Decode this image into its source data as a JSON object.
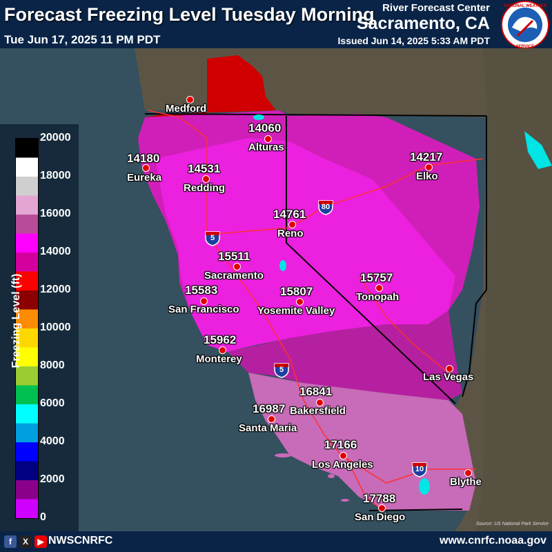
{
  "header": {
    "title": "Forecast Freezing Level Tuesday Morning",
    "valid_time": "Tue Jun 17, 2025 11 PM PDT",
    "agency": "River Forecast Center",
    "office": "Sacramento, CA",
    "issued": "Issued Jun 14, 2025 5:33 AM PDT",
    "logo_text": "NATIONAL WEATHER SERVICE"
  },
  "legend": {
    "title": "Freezing Level (ft)",
    "ticks": [
      "20000",
      "18000",
      "16000",
      "14000",
      "12000",
      "10000",
      "8000",
      "6000",
      "4000",
      "2000",
      "0"
    ],
    "colors": [
      "#000000",
      "#ffffff",
      "#cfcfcf",
      "#e3a5d2",
      "#b94c9a",
      "#ff00ff",
      "#d4009d",
      "#ff0000",
      "#8b0000",
      "#ff8c00",
      "#ffd700",
      "#ffff00",
      "#9acd32",
      "#00c050",
      "#00ffff",
      "#00a0e0",
      "#0000ff",
      "#000080",
      "#8b008b",
      "#d000ff"
    ]
  },
  "points": [
    {
      "value": "14060",
      "city": "Alturas"
    },
    {
      "value": "14180",
      "city": "Eureka"
    },
    {
      "value": "14531",
      "city": "Redding"
    },
    {
      "value": "14217",
      "city": "Elko"
    },
    {
      "value": "14761",
      "city": "Reno"
    },
    {
      "value": "15511",
      "city": "Sacramento"
    },
    {
      "value": "15583",
      "city": "San Francisco"
    },
    {
      "value": "15807",
      "city": "Yosemite Valley"
    },
    {
      "value": "15757",
      "city": "Tonopah"
    },
    {
      "value": "15962",
      "city": "Monterey"
    },
    {
      "value": "16841",
      "city": "Bakersfield"
    },
    {
      "value": "16987",
      "city": "Santa Maria"
    },
    {
      "value": "17166",
      "city": "Los Angeles"
    },
    {
      "value": "17788",
      "city": "San Diego"
    },
    {
      "value": "",
      "city": "Medford"
    },
    {
      "value": "",
      "city": "Las Vegas"
    },
    {
      "value": "",
      "city": "Blythe"
    }
  ],
  "highways": [
    "80",
    "5",
    "5",
    "10"
  ],
  "credit": "Source: US National Park Service",
  "footer": {
    "handle": "NWSCNRFC",
    "url": "www.cnrfc.noaa.gov",
    "icons": [
      "facebook-icon",
      "x-icon",
      "youtube-icon"
    ]
  }
}
